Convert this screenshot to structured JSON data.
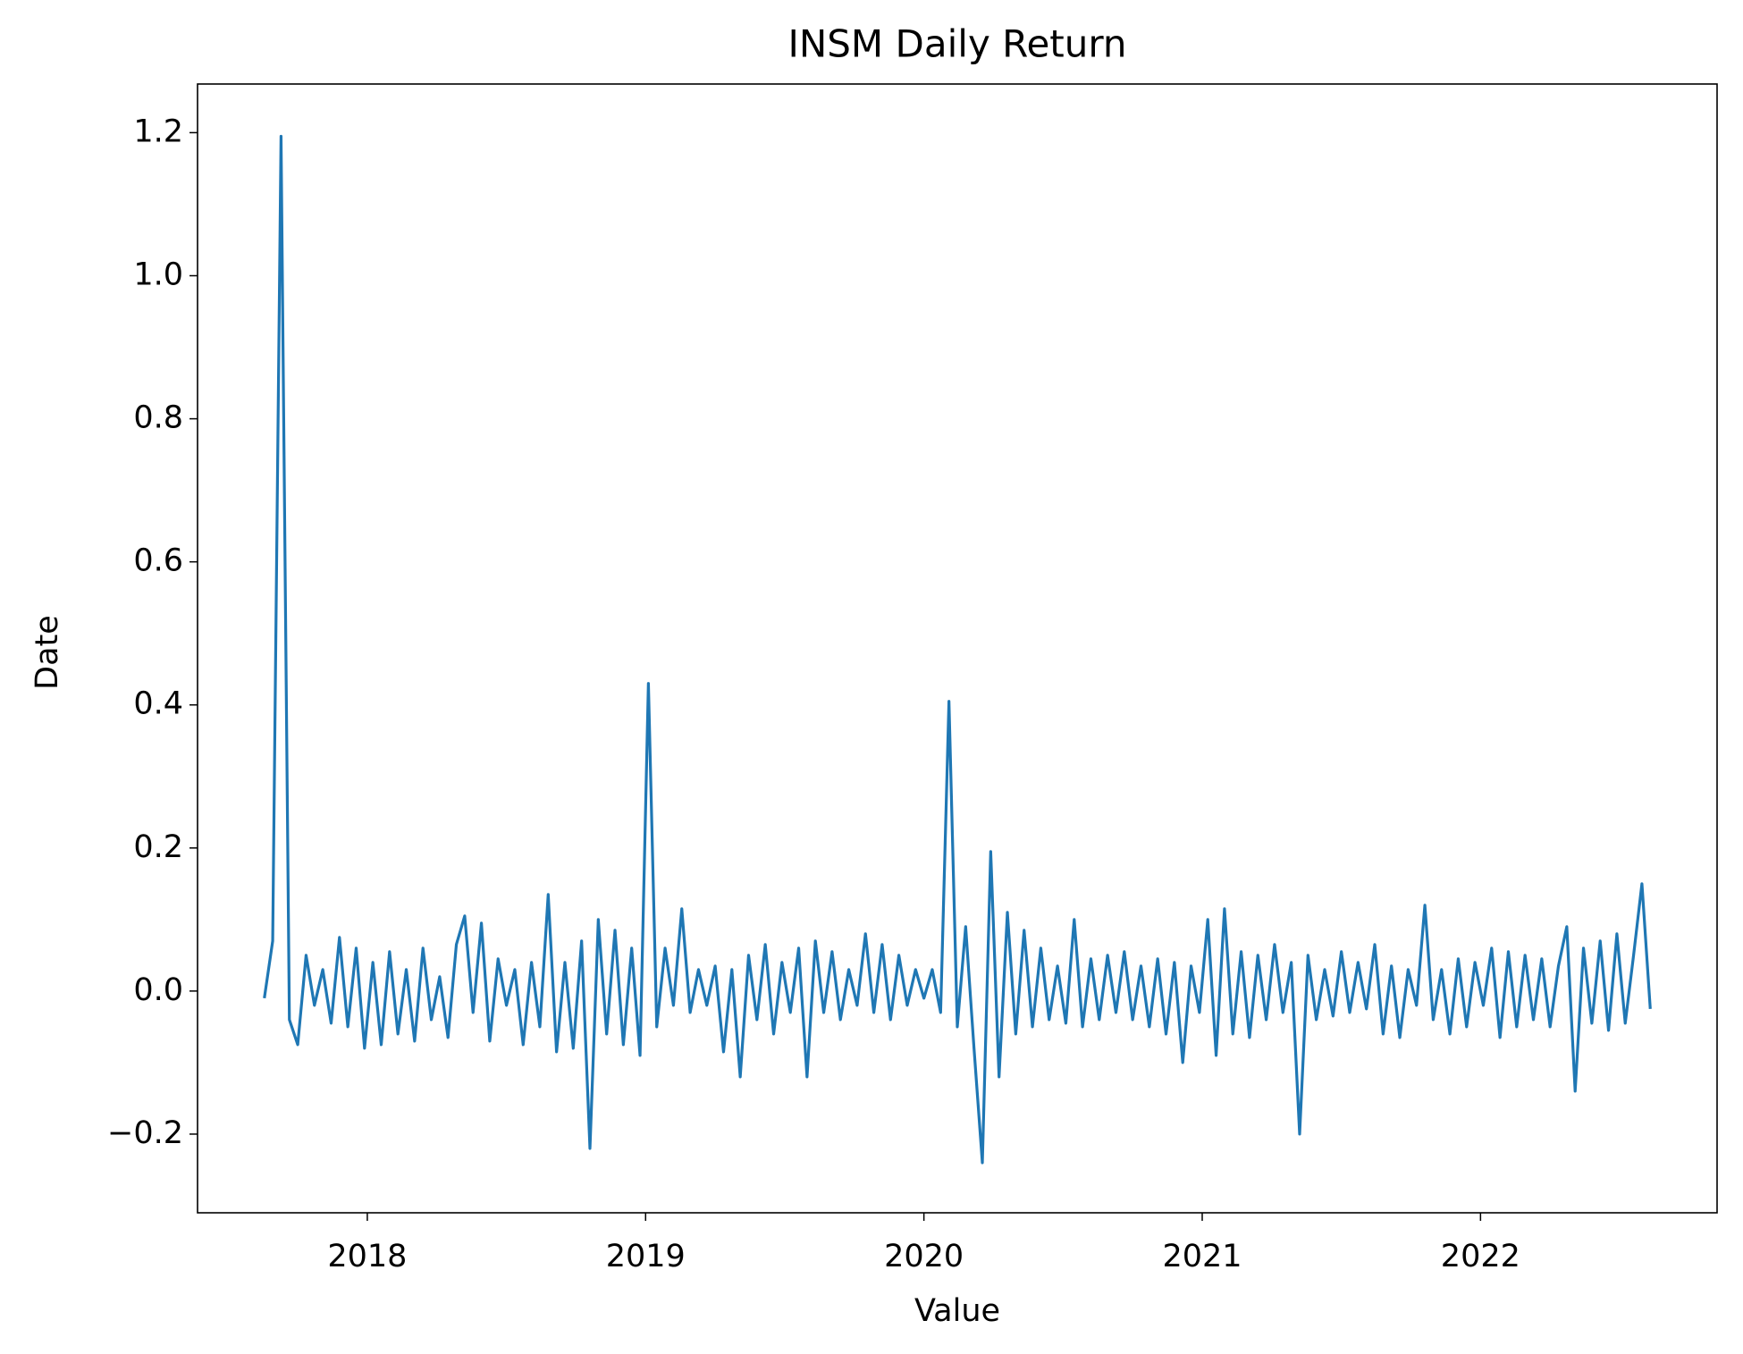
{
  "chart_data": {
    "type": "line",
    "title": "INSM Daily Return",
    "x_label": "Value",
    "y_label": "Date",
    "x": [
      2017.63,
      2017.66,
      2017.69,
      2017.72,
      2017.75,
      2017.78,
      2017.81,
      2017.84,
      2017.87,
      2017.9,
      2017.93,
      2017.96,
      2017.99,
      2018.02,
      2018.05,
      2018.08,
      2018.11,
      2018.14,
      2018.17,
      2018.2,
      2018.23,
      2018.26,
      2018.29,
      2018.32,
      2018.35,
      2018.38,
      2018.41,
      2018.44,
      2018.47,
      2018.5,
      2018.53,
      2018.56,
      2018.59,
      2018.62,
      2018.65,
      2018.68,
      2018.71,
      2018.74,
      2018.77,
      2018.8,
      2018.83,
      2018.86,
      2018.89,
      2018.92,
      2018.95,
      2018.98,
      2019.01,
      2019.04,
      2019.07,
      2019.1,
      2019.13,
      2019.16,
      2019.19,
      2019.22,
      2019.25,
      2019.28,
      2019.31,
      2019.34,
      2019.37,
      2019.4,
      2019.43,
      2019.46,
      2019.49,
      2019.52,
      2019.55,
      2019.58,
      2019.61,
      2019.64,
      2019.67,
      2019.7,
      2019.73,
      2019.76,
      2019.79,
      2019.82,
      2019.85,
      2019.88,
      2019.91,
      2019.94,
      2019.97,
      2020.0,
      2020.03,
      2020.06,
      2020.09,
      2020.12,
      2020.15,
      2020.18,
      2020.21,
      2020.24,
      2020.27,
      2020.3,
      2020.33,
      2020.36,
      2020.39,
      2020.42,
      2020.45,
      2020.48,
      2020.51,
      2020.54,
      2020.57,
      2020.6,
      2020.63,
      2020.66,
      2020.69,
      2020.72,
      2020.75,
      2020.78,
      2020.81,
      2020.84,
      2020.87,
      2020.9,
      2020.93,
      2020.96,
      2020.99,
      2021.02,
      2021.05,
      2021.08,
      2021.11,
      2021.14,
      2021.17,
      2021.2,
      2021.23,
      2021.26,
      2021.29,
      2021.32,
      2021.35,
      2021.38,
      2021.41,
      2021.44,
      2021.47,
      2021.5,
      2021.53,
      2021.56,
      2021.59,
      2021.62,
      2021.65,
      2021.68,
      2021.71,
      2021.74,
      2021.77,
      2021.8,
      2021.83,
      2021.86,
      2021.89,
      2021.92,
      2021.95,
      2021.98,
      2022.01,
      2022.04,
      2022.07,
      2022.1,
      2022.13,
      2022.16,
      2022.19,
      2022.22,
      2022.25,
      2022.28,
      2022.31,
      2022.34,
      2022.37,
      2022.4,
      2022.43,
      2022.46,
      2022.49,
      2022.52,
      2022.55,
      2022.58,
      2022.61
    ],
    "series": [
      {
        "name": "INSM",
        "color": "#1f77b4",
        "values": [
          -0.01,
          0.07,
          1.195,
          -0.04,
          -0.075,
          0.05,
          -0.02,
          0.03,
          -0.045,
          0.075,
          -0.05,
          0.06,
          -0.08,
          0.04,
          -0.075,
          0.055,
          -0.06,
          0.03,
          -0.07,
          0.06,
          -0.04,
          0.02,
          -0.065,
          0.065,
          0.105,
          -0.03,
          0.095,
          -0.07,
          0.045,
          -0.02,
          0.03,
          -0.075,
          0.04,
          -0.05,
          0.135,
          -0.085,
          0.04,
          -0.08,
          0.07,
          -0.22,
          0.1,
          -0.06,
          0.085,
          -0.075,
          0.06,
          -0.09,
          0.43,
          -0.05,
          0.06,
          -0.02,
          0.115,
          -0.03,
          0.03,
          -0.02,
          0.035,
          -0.085,
          0.03,
          -0.12,
          0.05,
          -0.04,
          0.065,
          -0.06,
          0.04,
          -0.03,
          0.06,
          -0.12,
          0.07,
          -0.03,
          0.055,
          -0.04,
          0.03,
          -0.02,
          0.08,
          -0.03,
          0.065,
          -0.04,
          0.05,
          -0.02,
          0.03,
          -0.01,
          0.03,
          -0.03,
          0.405,
          -0.05,
          0.09,
          -0.08,
          -0.24,
          0.195,
          -0.12,
          0.11,
          -0.06,
          0.085,
          -0.05,
          0.06,
          -0.04,
          0.035,
          -0.045,
          0.1,
          -0.05,
          0.045,
          -0.04,
          0.05,
          -0.03,
          0.055,
          -0.04,
          0.035,
          -0.05,
          0.045,
          -0.06,
          0.04,
          -0.1,
          0.035,
          -0.03,
          0.1,
          -0.09,
          0.115,
          -0.06,
          0.055,
          -0.065,
          0.05,
          -0.04,
          0.065,
          -0.03,
          0.04,
          -0.2,
          0.05,
          -0.04,
          0.03,
          -0.035,
          0.055,
          -0.03,
          0.04,
          -0.025,
          0.065,
          -0.06,
          0.035,
          -0.065,
          0.03,
          -0.02,
          0.12,
          -0.04,
          0.03,
          -0.06,
          0.045,
          -0.05,
          0.04,
          -0.02,
          0.06,
          -0.065,
          0.055,
          -0.05,
          0.05,
          -0.04,
          0.045,
          -0.05,
          0.035,
          0.09,
          -0.14,
          0.06,
          -0.045,
          0.07,
          -0.055,
          0.08,
          -0.045,
          0.05,
          0.15,
          -0.025
        ]
      }
    ],
    "xlim": [
      2017.39,
      2022.85
    ],
    "xticks": [
      2018,
      2019,
      2020,
      2021,
      2022
    ],
    "ylim": [
      -0.31,
      1.268
    ],
    "yticks": [
      {
        "value": -0.2,
        "label": "−0.2"
      },
      {
        "value": 0,
        "label": "0.0"
      },
      0.2,
      0.4,
      0.6,
      0.8,
      {
        "value": 1.0,
        "label": "1.0"
      },
      1.2
    ],
    "grid": false
  }
}
